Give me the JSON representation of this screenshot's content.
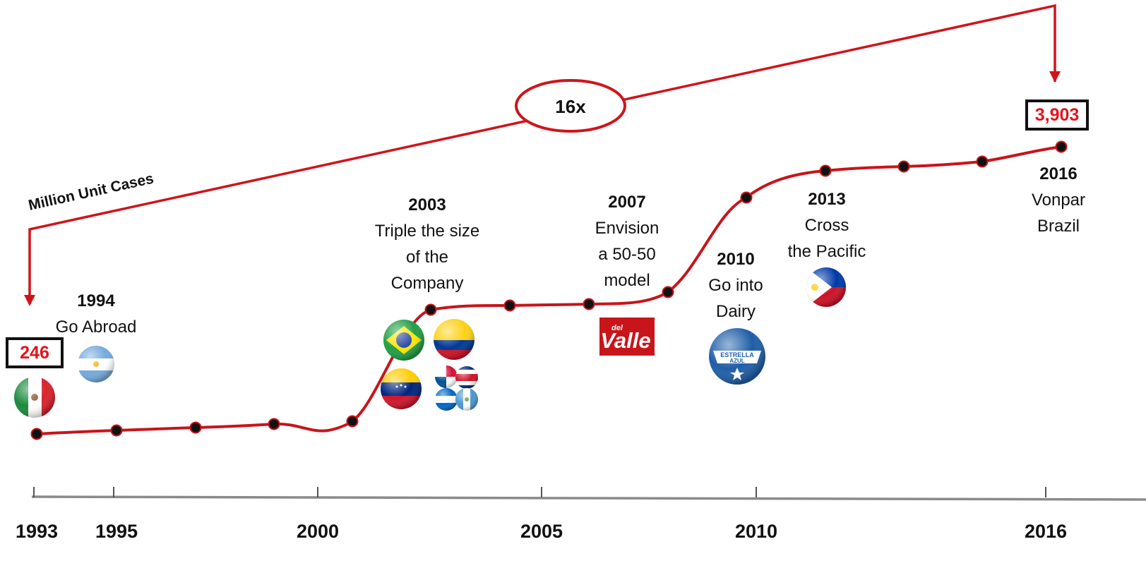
{
  "chart_data": {
    "type": "line",
    "unit_label": "Million Unit Cases",
    "multiplier_label": "16x",
    "start_value_label": "246",
    "end_value_label": "3,903",
    "x_ticks": [
      "1993",
      "1995",
      "2000",
      "2005",
      "2010",
      "2016"
    ],
    "line_color": "#d0141b",
    "milestones": [
      {
        "year": "1994",
        "lines": [
          "Go Abroad"
        ]
      },
      {
        "year": "2003",
        "lines": [
          "Triple the size",
          "of the",
          "Company"
        ]
      },
      {
        "year": "2007",
        "lines": [
          "Envision",
          "a 50-50",
          "model"
        ]
      },
      {
        "year": "2010",
        "lines": [
          "Go into",
          "Dairy"
        ]
      },
      {
        "year": "2013",
        "lines": [
          "Cross",
          "the Pacific"
        ]
      },
      {
        "year": "2016",
        "lines": [
          "Vonpar",
          "Brazil"
        ]
      }
    ],
    "logos": {
      "del_valle": {
        "small": "del",
        "big": "Valle"
      },
      "estrella": {
        "line1": "ESTRELLA",
        "line2": "AZUL"
      }
    }
  }
}
